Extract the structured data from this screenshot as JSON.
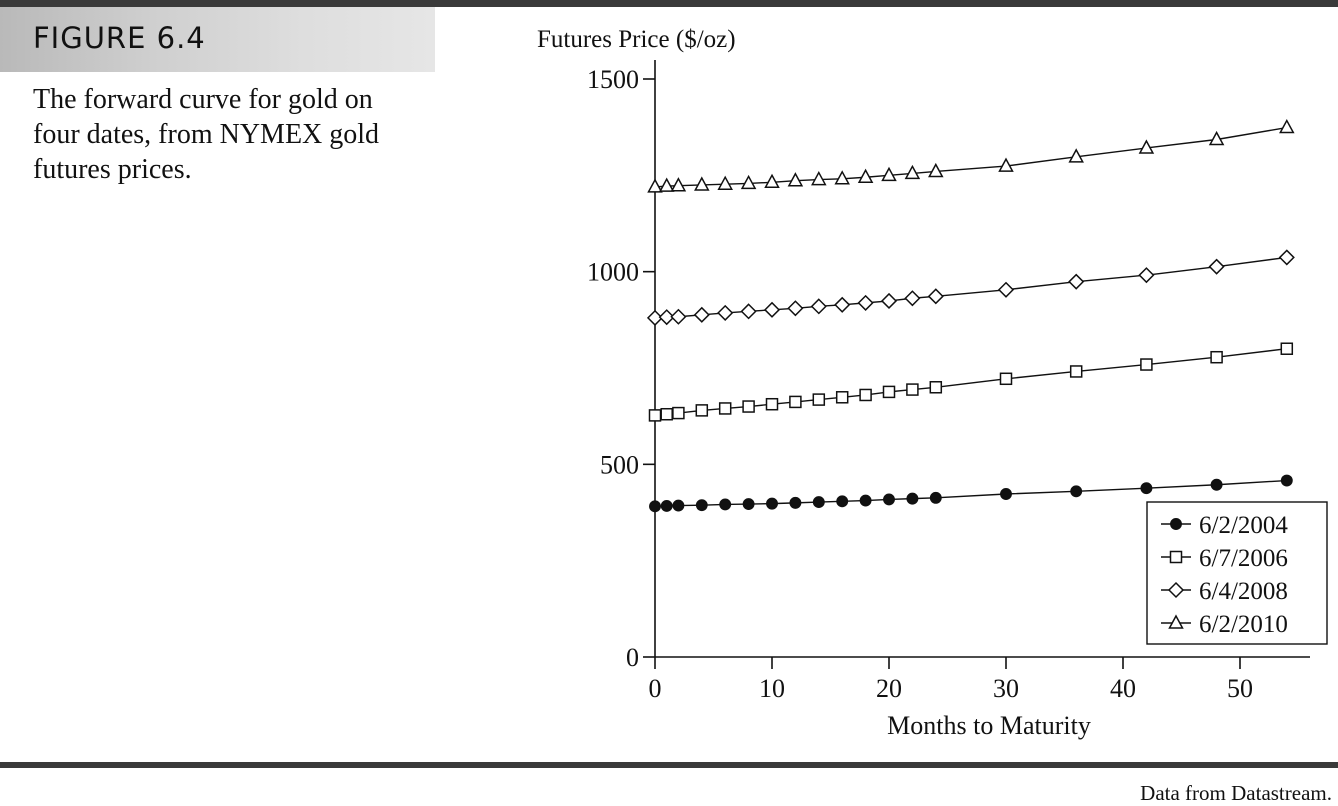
{
  "figure": {
    "label": "FIGURE 6.4",
    "caption": "The forward curve for gold on four dates, from NYMEX gold futures prices.",
    "source": "Data from Datastream."
  },
  "chart_data": {
    "type": "line",
    "ylabel": "Futures Price ($/oz)",
    "xlabel": "Months to Maturity",
    "xlim": [
      0,
      55
    ],
    "ylim": [
      0,
      1500
    ],
    "xticks": [
      0,
      10,
      20,
      30,
      40,
      50
    ],
    "yticks": [
      0,
      500,
      1000,
      1500
    ],
    "grid": false,
    "legend_position": "bottom-right",
    "x": [
      0,
      1,
      2,
      4,
      6,
      8,
      10,
      12,
      14,
      16,
      18,
      20,
      22,
      24,
      30,
      36,
      42,
      48,
      54
    ],
    "series": [
      {
        "name": "6/2/2004",
        "marker": "filled-circle",
        "values": [
          391,
          392,
          393,
          394,
          396,
          397,
          398,
          400,
          402,
          404,
          406,
          409,
          411,
          413,
          423,
          430,
          438,
          447,
          458
        ]
      },
      {
        "name": "6/7/2006",
        "marker": "open-square",
        "values": [
          627,
          630,
          633,
          640,
          645,
          650,
          656,
          662,
          668,
          674,
          680,
          688,
          694,
          700,
          722,
          741,
          759,
          778,
          800
        ]
      },
      {
        "name": "6/4/2008",
        "marker": "open-diamond",
        "values": [
          880,
          882,
          883,
          888,
          893,
          897,
          901,
          905,
          910,
          914,
          919,
          924,
          931,
          936,
          953,
          974,
          991,
          1013,
          1037
        ]
      },
      {
        "name": "6/2/2010",
        "marker": "open-triangle",
        "values": [
          1220,
          1222,
          1223,
          1225,
          1227,
          1229,
          1232,
          1236,
          1239,
          1241,
          1245,
          1250,
          1255,
          1260,
          1274,
          1298,
          1321,
          1343,
          1374
        ]
      }
    ]
  }
}
